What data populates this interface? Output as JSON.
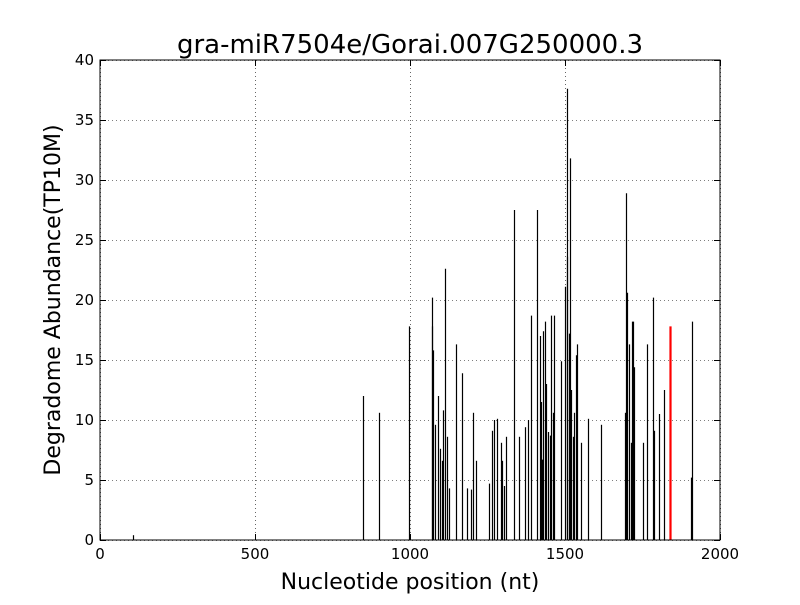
{
  "chart_data": {
    "type": "bar",
    "title": "gra-miR7504e/Gorai.007G250000.3",
    "xlabel": "Nucleotide position (nt)",
    "ylabel": "Degradome Abundance(TP10M)",
    "xlim": [
      0,
      2000
    ],
    "ylim": [
      0,
      40
    ],
    "xticks": [
      0,
      500,
      1000,
      1500,
      2000
    ],
    "yticks": [
      0,
      5,
      10,
      15,
      20,
      25,
      30,
      35,
      40
    ],
    "grid": true,
    "bar_color": "#000000",
    "highlight_color": "#ff0000",
    "series": [
      {
        "x": [
          108,
          847,
          900,
          996,
          1070,
          1072,
          1075,
          1082,
          1090,
          1098,
          1103,
          1108,
          1114,
          1118,
          1126,
          1147,
          1167,
          1183,
          1198,
          1203,
          1212,
          1255,
          1263,
          1272,
          1280,
          1292,
          1298,
          1303,
          1310,
          1335,
          1353,
          1370,
          1380,
          1391,
          1410,
          1420,
          1423,
          1426,
          1430,
          1436,
          1440,
          1445,
          1450,
          1455,
          1460,
          1465,
          1488,
          1500,
          1505,
          1508,
          1512,
          1516,
          1520,
          1525,
          1530,
          1535,
          1540,
          1552,
          1575,
          1617,
          1693,
          1697,
          1700,
          1706,
          1712,
          1716,
          1720,
          1723,
          1750,
          1765,
          1783,
          1787,
          1803,
          1820,
          1908,
          1910
        ],
        "values": [
          0.4,
          12,
          10.6,
          17.8,
          20.2,
          17.8,
          15.8,
          9.6,
          12,
          7.6,
          6.6,
          10.8,
          22.6,
          8.6,
          4.3,
          16.3,
          13.9,
          4.3,
          4.2,
          10.6,
          6.6,
          4.7,
          9.1,
          10,
          10.1,
          8.1,
          6.6,
          4.5,
          8.6,
          27.5,
          8.6,
          9.4,
          10,
          18.7,
          27.5,
          17,
          11.5,
          6.7,
          17.4,
          18.2,
          13,
          9,
          8.7,
          18.7,
          10.6,
          18.7,
          14.9,
          21.1,
          37.6,
          23.6,
          17.2,
          31.8,
          12.5,
          8.6,
          10.6,
          15.4,
          16.3,
          8.1,
          10.1,
          9.6,
          10.6,
          28.9,
          20.6,
          16.3,
          8.1,
          18.2,
          18.2,
          14.4,
          8.1,
          16.3,
          20.2,
          9.1,
          10.5,
          12.5,
          5.2,
          18.2
        ]
      }
    ],
    "highlight": {
      "x": 1840,
      "value": 17.8
    }
  }
}
